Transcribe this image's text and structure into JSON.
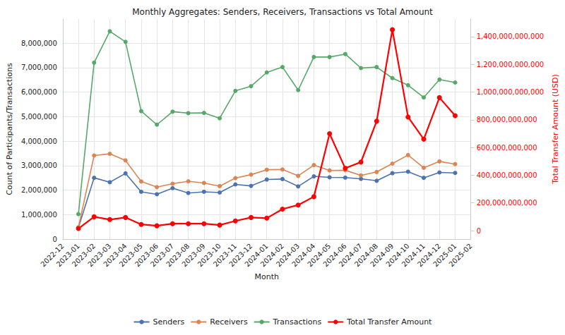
{
  "chart_data": {
    "type": "line",
    "title": "Monthly Aggregates: Senders, Receivers, Transactions vs Total Amount",
    "x_label": "Month",
    "y_label": "Count of Participants/Transactions",
    "y2_label": "Total Transfer Amount (USD)",
    "categories": [
      "2022-12",
      "2023-01",
      "2023-02",
      "2023-03",
      "2023-04",
      "2023-05",
      "2023-06",
      "2023-07",
      "2023-08",
      "2023-09",
      "2023-10",
      "2023-11",
      "2023-12",
      "2024-01",
      "2024-02",
      "2024-03",
      "2024-04",
      "2024-05",
      "2024-06",
      "2024-07",
      "2024-08",
      "2024-09",
      "2024-10",
      "2024-11",
      "2024-12",
      "2025-01",
      "2025-02"
    ],
    "series": [
      {
        "name": "Senders",
        "color": "#4c72b0",
        "marker": "circle",
        "values": [
          null,
          470000,
          2500000,
          2320000,
          2680000,
          1930000,
          1830000,
          2080000,
          1880000,
          1930000,
          1900000,
          2230000,
          2170000,
          2430000,
          2450000,
          2150000,
          2560000,
          2520000,
          2510000,
          2460000,
          2380000,
          2690000,
          2750000,
          2500000,
          2720000,
          2700000,
          null
        ]
      },
      {
        "name": "Receivers",
        "color": "#dd8452",
        "marker": "circle",
        "values": [
          null,
          480000,
          3410000,
          3480000,
          3210000,
          2350000,
          2120000,
          2260000,
          2360000,
          2290000,
          2160000,
          2490000,
          2630000,
          2830000,
          2840000,
          2580000,
          3020000,
          2800000,
          2810000,
          2600000,
          2740000,
          3080000,
          3430000,
          2910000,
          3170000,
          3060000,
          null
        ]
      },
      {
        "name": "Transactions",
        "color": "#55a868",
        "marker": "circle",
        "values": [
          null,
          1020000,
          7200000,
          8480000,
          8050000,
          5220000,
          4670000,
          5200000,
          5140000,
          5150000,
          4930000,
          6050000,
          6240000,
          6800000,
          7020000,
          6080000,
          7430000,
          7430000,
          7550000,
          6980000,
          7020000,
          6570000,
          6280000,
          5780000,
          6510000,
          6390000,
          null
        ]
      },
      {
        "name": "Total Transfer Amount",
        "color": "#ff0000",
        "marker": "circle",
        "axis": "y2",
        "values": [
          null,
          15000000000,
          100000000000,
          80000000000,
          95000000000,
          45000000000,
          35000000000,
          50000000000,
          50000000000,
          50000000000,
          40000000000,
          70000000000,
          95000000000,
          90000000000,
          155000000000,
          185000000000,
          245000000000,
          700000000000,
          450000000000,
          495000000000,
          790000000000,
          1450000000000,
          820000000000,
          660000000000,
          960000000000,
          830000000000,
          null
        ]
      }
    ],
    "ylim": [
      0,
      8980000
    ],
    "yticks": [
      0,
      {
        "value": 1000000,
        "label": "1,000,000"
      },
      {
        "value": 2000000,
        "label": "2,000,000"
      },
      {
        "value": 3000000,
        "label": "3,000,000"
      },
      {
        "value": 4000000,
        "label": "4,000,000"
      },
      {
        "value": 5000000,
        "label": "5,000,000"
      },
      {
        "value": 6000000,
        "label": "6,000,000"
      },
      {
        "value": 7000000,
        "label": "7,000,000"
      },
      {
        "value": 8000000,
        "label": "8,000,000"
      }
    ],
    "y2lim": [
      -61000000000,
      1527000000000
    ],
    "y2ticks": [
      0,
      {
        "value": 200000000000,
        "label": "200,000,000,000"
      },
      {
        "value": 400000000000,
        "label": "400,000,000,000"
      },
      {
        "value": 600000000000,
        "label": "600,000,000,000"
      },
      {
        "value": 800000000000,
        "label": "800,000,000,000"
      },
      {
        "value": 1000000000000,
        "label": "1,000,000,000,000"
      },
      {
        "value": 1200000000000,
        "label": "1,200,000,000,000"
      },
      {
        "value": 1400000000000,
        "label": "1,400,000,000,000"
      }
    ],
    "grid": true,
    "legend": "bottom"
  }
}
